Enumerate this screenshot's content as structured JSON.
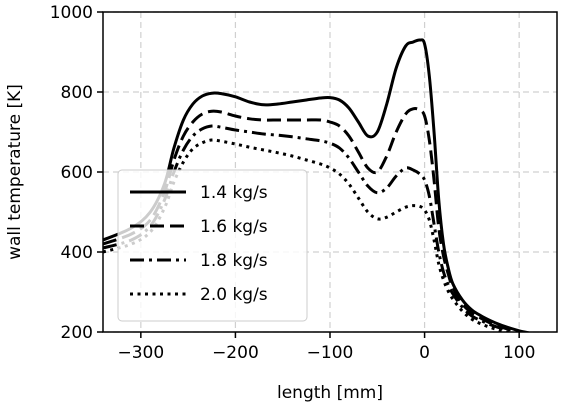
{
  "chart_data": {
    "type": "line",
    "title": "",
    "xlabel": "length [mm]",
    "ylabel": "wall temperature [K]",
    "xlim": [
      -340,
      140
    ],
    "ylim": [
      200,
      1000
    ],
    "xticks": [
      -300,
      -200,
      -100,
      0,
      100
    ],
    "xtick_labels": [
      "−300",
      "−200",
      "−100",
      "0",
      "100"
    ],
    "yticks": [
      200,
      400,
      600,
      800,
      1000
    ],
    "ytick_labels": [
      "200",
      "400",
      "600",
      "800",
      "1000"
    ],
    "grid": true,
    "legend_position": "lower-left",
    "series": [
      {
        "name": "1.4 kg/s",
        "style": "solid",
        "x": [
          -340,
          -310,
          -290,
          -275,
          -265,
          -255,
          -245,
          -235,
          -225,
          -215,
          -200,
          -185,
          -170,
          -155,
          -140,
          -125,
          -110,
          -100,
          -90,
          -80,
          -70,
          -60,
          -50,
          -40,
          -30,
          -20,
          -12,
          -5,
          0,
          5,
          10,
          15,
          20,
          25,
          30,
          40,
          50,
          60,
          70,
          80,
          90,
          100,
          110
        ],
        "y": [
          430,
          460,
          500,
          570,
          660,
          730,
          770,
          790,
          797,
          796,
          788,
          775,
          768,
          770,
          775,
          780,
          785,
          786,
          780,
          760,
          725,
          690,
          700,
          770,
          860,
          915,
          925,
          930,
          920,
          840,
          700,
          530,
          420,
          360,
          320,
          280,
          255,
          240,
          228,
          218,
          210,
          203,
          198
        ]
      },
      {
        "name": "1.6 kg/s",
        "style": "dashed",
        "x": [
          -340,
          -310,
          -290,
          -275,
          -265,
          -255,
          -245,
          -235,
          -225,
          -215,
          -200,
          -185,
          -170,
          -155,
          -140,
          -125,
          -110,
          -100,
          -90,
          -80,
          -70,
          -60,
          -50,
          -40,
          -30,
          -20,
          -12,
          -5,
          0,
          5,
          10,
          15,
          20,
          25,
          30,
          40,
          50,
          60,
          70,
          80,
          90,
          100
        ],
        "y": [
          420,
          445,
          480,
          550,
          630,
          690,
          725,
          745,
          752,
          750,
          740,
          733,
          730,
          730,
          730,
          730,
          730,
          725,
          715,
          690,
          650,
          610,
          600,
          640,
          700,
          745,
          758,
          755,
          740,
          680,
          580,
          460,
          390,
          345,
          310,
          270,
          248,
          234,
          222,
          213,
          206,
          200
        ]
      },
      {
        "name": "1.8 kg/s",
        "style": "dashdot",
        "x": [
          -340,
          -310,
          -290,
          -275,
          -265,
          -255,
          -245,
          -235,
          -225,
          -215,
          -200,
          -185,
          -170,
          -155,
          -140,
          -125,
          -110,
          -100,
          -90,
          -80,
          -70,
          -60,
          -50,
          -40,
          -30,
          -20,
          -12,
          -5,
          0,
          5,
          10,
          15,
          20,
          25,
          30,
          40,
          50,
          60,
          70,
          80,
          90
        ],
        "y": [
          410,
          430,
          465,
          530,
          600,
          655,
          690,
          708,
          715,
          712,
          705,
          700,
          695,
          692,
          688,
          683,
          678,
          672,
          660,
          635,
          600,
          565,
          548,
          560,
          590,
          610,
          605,
          595,
          580,
          540,
          470,
          400,
          350,
          318,
          295,
          262,
          240,
          228,
          218,
          210,
          203
        ]
      },
      {
        "name": "2.0 kg/s",
        "style": "dotted",
        "x": [
          -340,
          -310,
          -290,
          -275,
          -265,
          -255,
          -245,
          -235,
          -225,
          -215,
          -200,
          -185,
          -170,
          -155,
          -140,
          -125,
          -110,
          -100,
          -90,
          -80,
          -70,
          -60,
          -50,
          -40,
          -30,
          -20,
          -12,
          -5,
          0,
          5,
          10,
          15,
          20,
          25,
          30,
          40,
          50,
          60,
          70,
          80,
          90
        ],
        "y": [
          400,
          420,
          450,
          510,
          575,
          625,
          658,
          673,
          680,
          677,
          670,
          662,
          655,
          648,
          640,
          630,
          620,
          610,
          595,
          570,
          535,
          500,
          483,
          487,
          500,
          512,
          516,
          514,
          505,
          480,
          430,
          370,
          330,
          302,
          282,
          252,
          232,
          220,
          211,
          204,
          198
        ]
      }
    ]
  }
}
